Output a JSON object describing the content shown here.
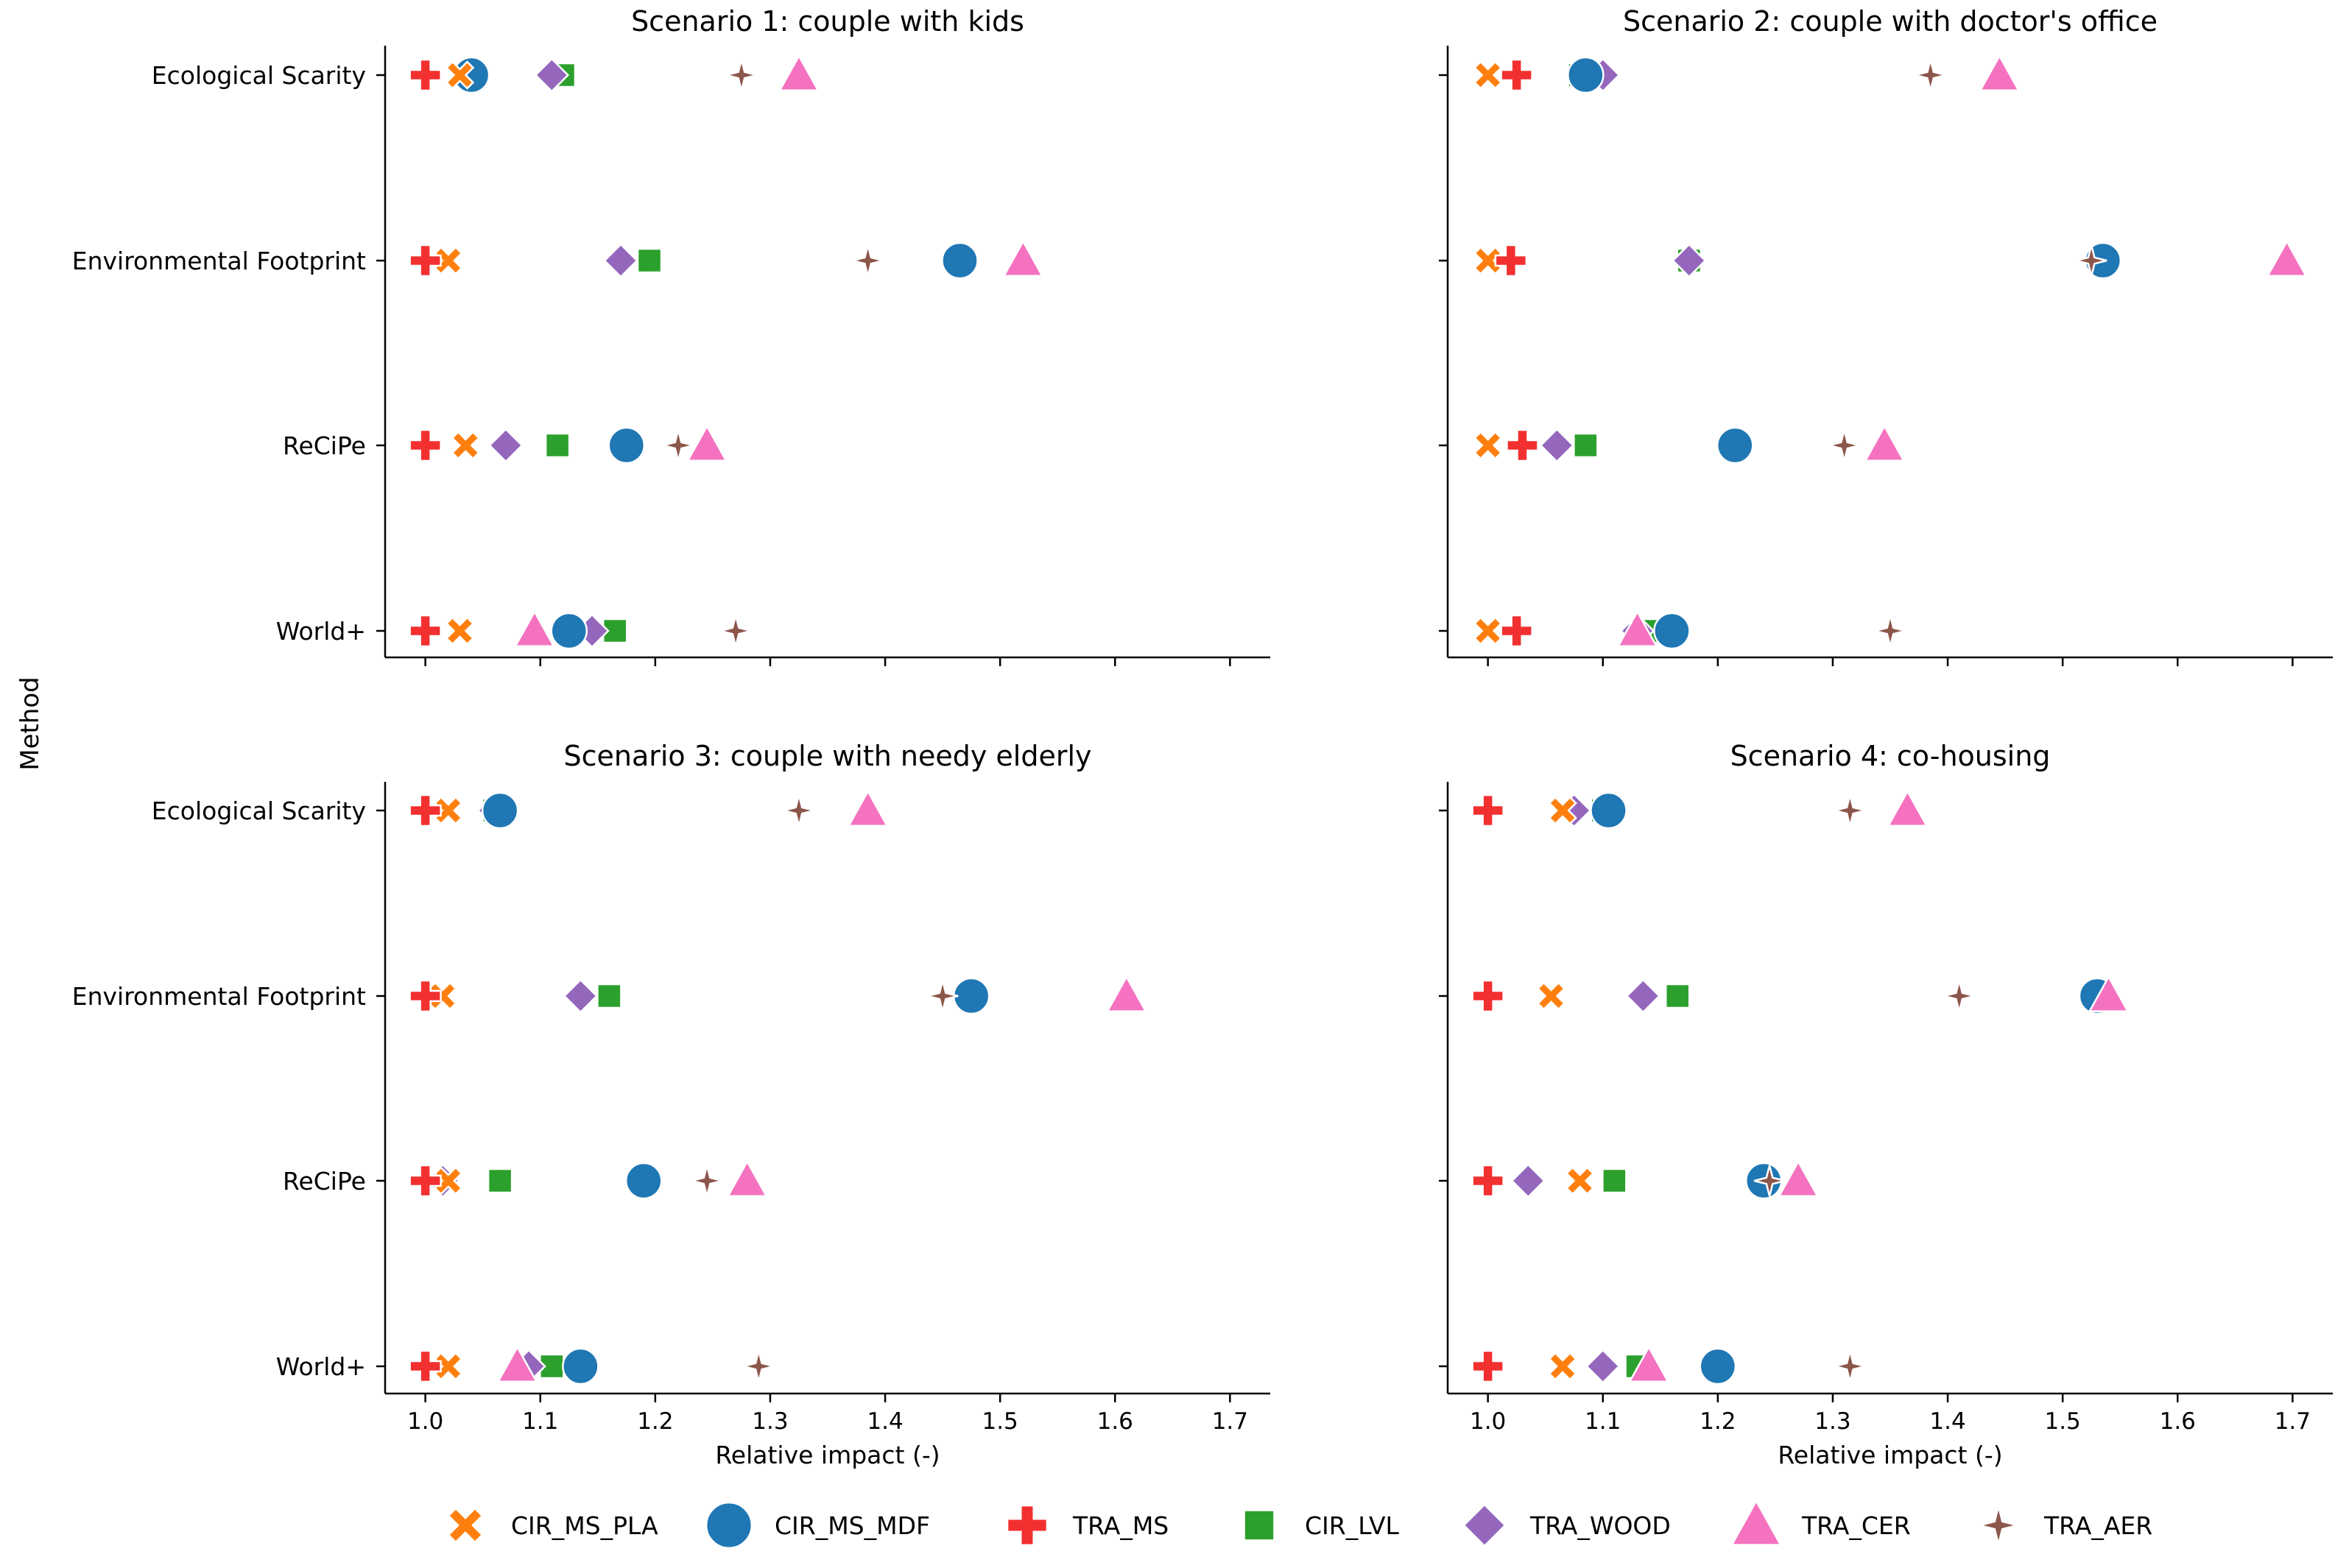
{
  "figure": {
    "ylabel": "Method",
    "xlabel": "Relative impact (-)"
  },
  "colors": {
    "CIR_MS_PLA": "#ff7f0e",
    "CIR_MS_MDF": "#1f77b4",
    "TRA_MS": "#f23030",
    "CIR_LVL": "#2ca02c",
    "TRA_WOOD": "#9467bd",
    "TRA_CER": "#f472c0",
    "TRA_AER": "#8c564b"
  },
  "legend": [
    {
      "key": "CIR_MS_PLA",
      "label": "CIR_MS_PLA",
      "icon": "x-marker-icon"
    },
    {
      "key": "CIR_MS_MDF",
      "label": "CIR_MS_MDF",
      "icon": "circle-marker-icon"
    },
    {
      "key": "TRA_MS",
      "label": "TRA_MS",
      "icon": "plus-marker-icon"
    },
    {
      "key": "CIR_LVL",
      "label": "CIR_LVL",
      "icon": "square-marker-icon"
    },
    {
      "key": "TRA_WOOD",
      "label": "TRA_WOOD",
      "icon": "diamond-marker-icon"
    },
    {
      "key": "TRA_CER",
      "label": "TRA_CER",
      "icon": "triangle-marker-icon"
    },
    {
      "key": "TRA_AER",
      "label": "TRA_AER",
      "icon": "star-marker-icon"
    }
  ],
  "chart_data": [
    {
      "type": "scatter",
      "title": "Scenario 1: couple with kids",
      "xlabel": "Relative impact (-)",
      "ylabel": "Method",
      "xlim": [
        0.965,
        1.735
      ],
      "xticks": [
        "1.0",
        "1.1",
        "1.2",
        "1.3",
        "1.4",
        "1.5",
        "1.6",
        "1.7"
      ],
      "categories": [
        "Ecological Scarity",
        "Environmental Footprint",
        "ReCiPe",
        "World+"
      ],
      "series": [
        {
          "name": "CIR_MS_PLA",
          "values": [
            1.03,
            1.02,
            1.035,
            1.03
          ]
        },
        {
          "name": "CIR_MS_MDF",
          "values": [
            1.04,
            1.465,
            1.175,
            1.125
          ]
        },
        {
          "name": "TRA_MS",
          "values": [
            1.0,
            1.0,
            1.0,
            1.0
          ]
        },
        {
          "name": "CIR_LVL",
          "values": [
            1.12,
            1.195,
            1.115,
            1.165
          ]
        },
        {
          "name": "TRA_WOOD",
          "values": [
            1.11,
            1.17,
            1.07,
            1.145
          ]
        },
        {
          "name": "TRA_CER",
          "values": [
            1.325,
            1.52,
            1.245,
            1.095
          ]
        },
        {
          "name": "TRA_AER",
          "values": [
            1.275,
            1.385,
            1.22,
            1.27
          ]
        }
      ]
    },
    {
      "type": "scatter",
      "title": "Scenario 2: couple with doctor's office",
      "xlabel": "Relative impact (-)",
      "ylabel": "Method",
      "xlim": [
        0.965,
        1.735
      ],
      "xticks": [
        "1.0",
        "1.1",
        "1.2",
        "1.3",
        "1.4",
        "1.5",
        "1.6",
        "1.7"
      ],
      "categories": [
        "Ecological Scarity",
        "Environmental Footprint",
        "ReCiPe",
        "World+"
      ],
      "series": [
        {
          "name": "CIR_MS_PLA",
          "values": [
            1.0,
            1.0,
            1.0,
            1.0
          ]
        },
        {
          "name": "CIR_MS_MDF",
          "values": [
            1.085,
            1.535,
            1.215,
            1.16
          ]
        },
        {
          "name": "TRA_MS",
          "values": [
            1.025,
            1.02,
            1.03,
            1.025
          ]
        },
        {
          "name": "CIR_LVL",
          "values": [
            1.08,
            1.175,
            1.085,
            1.145
          ]
        },
        {
          "name": "TRA_WOOD",
          "values": [
            1.1,
            1.175,
            1.06,
            1.13
          ]
        },
        {
          "name": "TRA_CER",
          "values": [
            1.445,
            1.695,
            1.345,
            1.13
          ]
        },
        {
          "name": "TRA_AER",
          "values": [
            1.385,
            1.525,
            1.31,
            1.35
          ]
        }
      ]
    },
    {
      "type": "scatter",
      "title": "Scenario 3: couple with needy elderly",
      "xlabel": "Relative impact (-)",
      "ylabel": "Method",
      "xlim": [
        0.965,
        1.735
      ],
      "xticks": [
        "1.0",
        "1.1",
        "1.2",
        "1.3",
        "1.4",
        "1.5",
        "1.6",
        "1.7"
      ],
      "categories": [
        "Ecological Scarity",
        "Environmental Footprint",
        "ReCiPe",
        "World+"
      ],
      "series": [
        {
          "name": "CIR_MS_PLA",
          "values": [
            1.02,
            1.015,
            1.02,
            1.02
          ]
        },
        {
          "name": "CIR_MS_MDF",
          "values": [
            1.065,
            1.475,
            1.19,
            1.135
          ]
        },
        {
          "name": "TRA_MS",
          "values": [
            1.0,
            1.0,
            1.0,
            1.0
          ]
        },
        {
          "name": "CIR_LVL",
          "values": [
            1.06,
            1.16,
            1.065,
            1.11
          ]
        },
        {
          "name": "TRA_WOOD",
          "values": [
            1.06,
            1.135,
            1.015,
            1.09
          ]
        },
        {
          "name": "TRA_CER",
          "values": [
            1.385,
            1.61,
            1.28,
            1.08
          ]
        },
        {
          "name": "TRA_AER",
          "values": [
            1.325,
            1.45,
            1.245,
            1.29
          ]
        }
      ]
    },
    {
      "type": "scatter",
      "title": "Scenario 4: co-housing",
      "xlabel": "Relative impact (-)",
      "ylabel": "Method",
      "xlim": [
        0.965,
        1.735
      ],
      "xticks": [
        "1.0",
        "1.1",
        "1.2",
        "1.3",
        "1.4",
        "1.5",
        "1.6",
        "1.7"
      ],
      "categories": [
        "Ecological Scarity",
        "Environmental Footprint",
        "ReCiPe",
        "World+"
      ],
      "series": [
        {
          "name": "CIR_MS_PLA",
          "values": [
            1.065,
            1.055,
            1.08,
            1.065
          ]
        },
        {
          "name": "CIR_MS_MDF",
          "values": [
            1.105,
            1.53,
            1.24,
            1.2
          ]
        },
        {
          "name": "TRA_MS",
          "values": [
            1.0,
            1.0,
            1.0,
            1.0
          ]
        },
        {
          "name": "CIR_LVL",
          "values": [
            1.1,
            1.165,
            1.11,
            1.13
          ]
        },
        {
          "name": "TRA_WOOD",
          "values": [
            1.075,
            1.135,
            1.035,
            1.1
          ]
        },
        {
          "name": "TRA_CER",
          "values": [
            1.365,
            1.54,
            1.27,
            1.14
          ]
        },
        {
          "name": "TRA_AER",
          "values": [
            1.315,
            1.41,
            1.245,
            1.315
          ]
        }
      ]
    }
  ]
}
